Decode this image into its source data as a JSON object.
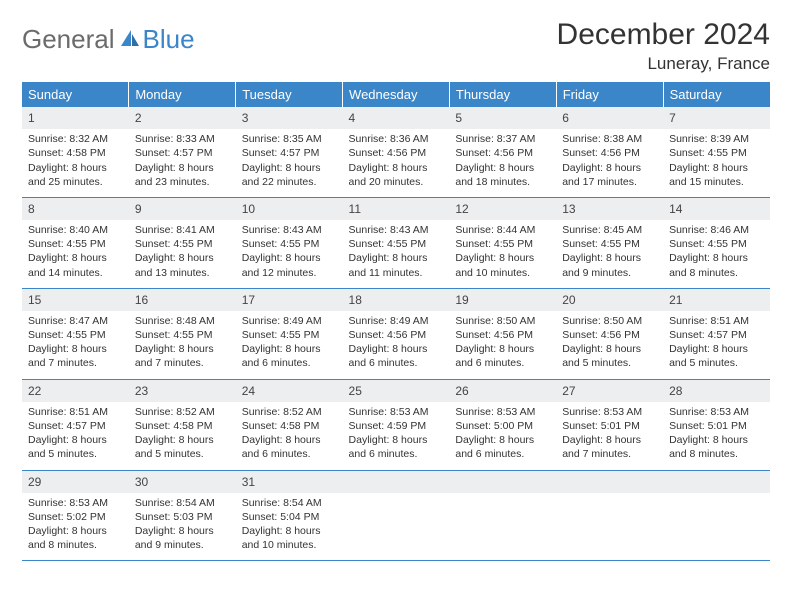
{
  "brand": {
    "part1": "General",
    "part2": "Blue"
  },
  "title": "December 2024",
  "location": "Luneray, France",
  "colors": {
    "header_bg": "#3a86c8",
    "header_text": "#ffffff",
    "daynum_bg": "#edeef0",
    "rule": "#3a86c8",
    "logo_gray": "#6b6b6b",
    "logo_blue": "#3a86c8"
  },
  "weekdays": [
    "Sunday",
    "Monday",
    "Tuesday",
    "Wednesday",
    "Thursday",
    "Friday",
    "Saturday"
  ],
  "weeks": [
    [
      {
        "n": "1",
        "sr": "8:32 AM",
        "ss": "4:58 PM",
        "dl": "8 hours and 25 minutes."
      },
      {
        "n": "2",
        "sr": "8:33 AM",
        "ss": "4:57 PM",
        "dl": "8 hours and 23 minutes."
      },
      {
        "n": "3",
        "sr": "8:35 AM",
        "ss": "4:57 PM",
        "dl": "8 hours and 22 minutes."
      },
      {
        "n": "4",
        "sr": "8:36 AM",
        "ss": "4:56 PM",
        "dl": "8 hours and 20 minutes."
      },
      {
        "n": "5",
        "sr": "8:37 AM",
        "ss": "4:56 PM",
        "dl": "8 hours and 18 minutes."
      },
      {
        "n": "6",
        "sr": "8:38 AM",
        "ss": "4:56 PM",
        "dl": "8 hours and 17 minutes."
      },
      {
        "n": "7",
        "sr": "8:39 AM",
        "ss": "4:55 PM",
        "dl": "8 hours and 15 minutes."
      }
    ],
    [
      {
        "n": "8",
        "sr": "8:40 AM",
        "ss": "4:55 PM",
        "dl": "8 hours and 14 minutes."
      },
      {
        "n": "9",
        "sr": "8:41 AM",
        "ss": "4:55 PM",
        "dl": "8 hours and 13 minutes."
      },
      {
        "n": "10",
        "sr": "8:43 AM",
        "ss": "4:55 PM",
        "dl": "8 hours and 12 minutes."
      },
      {
        "n": "11",
        "sr": "8:43 AM",
        "ss": "4:55 PM",
        "dl": "8 hours and 11 minutes."
      },
      {
        "n": "12",
        "sr": "8:44 AM",
        "ss": "4:55 PM",
        "dl": "8 hours and 10 minutes."
      },
      {
        "n": "13",
        "sr": "8:45 AM",
        "ss": "4:55 PM",
        "dl": "8 hours and 9 minutes."
      },
      {
        "n": "14",
        "sr": "8:46 AM",
        "ss": "4:55 PM",
        "dl": "8 hours and 8 minutes."
      }
    ],
    [
      {
        "n": "15",
        "sr": "8:47 AM",
        "ss": "4:55 PM",
        "dl": "8 hours and 7 minutes."
      },
      {
        "n": "16",
        "sr": "8:48 AM",
        "ss": "4:55 PM",
        "dl": "8 hours and 7 minutes."
      },
      {
        "n": "17",
        "sr": "8:49 AM",
        "ss": "4:55 PM",
        "dl": "8 hours and 6 minutes."
      },
      {
        "n": "18",
        "sr": "8:49 AM",
        "ss": "4:56 PM",
        "dl": "8 hours and 6 minutes."
      },
      {
        "n": "19",
        "sr": "8:50 AM",
        "ss": "4:56 PM",
        "dl": "8 hours and 6 minutes."
      },
      {
        "n": "20",
        "sr": "8:50 AM",
        "ss": "4:56 PM",
        "dl": "8 hours and 5 minutes."
      },
      {
        "n": "21",
        "sr": "8:51 AM",
        "ss": "4:57 PM",
        "dl": "8 hours and 5 minutes."
      }
    ],
    [
      {
        "n": "22",
        "sr": "8:51 AM",
        "ss": "4:57 PM",
        "dl": "8 hours and 5 minutes."
      },
      {
        "n": "23",
        "sr": "8:52 AM",
        "ss": "4:58 PM",
        "dl": "8 hours and 5 minutes."
      },
      {
        "n": "24",
        "sr": "8:52 AM",
        "ss": "4:58 PM",
        "dl": "8 hours and 6 minutes."
      },
      {
        "n": "25",
        "sr": "8:53 AM",
        "ss": "4:59 PM",
        "dl": "8 hours and 6 minutes."
      },
      {
        "n": "26",
        "sr": "8:53 AM",
        "ss": "5:00 PM",
        "dl": "8 hours and 6 minutes."
      },
      {
        "n": "27",
        "sr": "8:53 AM",
        "ss": "5:01 PM",
        "dl": "8 hours and 7 minutes."
      },
      {
        "n": "28",
        "sr": "8:53 AM",
        "ss": "5:01 PM",
        "dl": "8 hours and 8 minutes."
      }
    ],
    [
      {
        "n": "29",
        "sr": "8:53 AM",
        "ss": "5:02 PM",
        "dl": "8 hours and 8 minutes."
      },
      {
        "n": "30",
        "sr": "8:54 AM",
        "ss": "5:03 PM",
        "dl": "8 hours and 9 minutes."
      },
      {
        "n": "31",
        "sr": "8:54 AM",
        "ss": "5:04 PM",
        "dl": "8 hours and 10 minutes."
      },
      {
        "empty": true
      },
      {
        "empty": true
      },
      {
        "empty": true
      },
      {
        "empty": true
      }
    ]
  ],
  "labels": {
    "sunrise": "Sunrise: ",
    "sunset": "Sunset: ",
    "daylight": "Daylight: "
  }
}
